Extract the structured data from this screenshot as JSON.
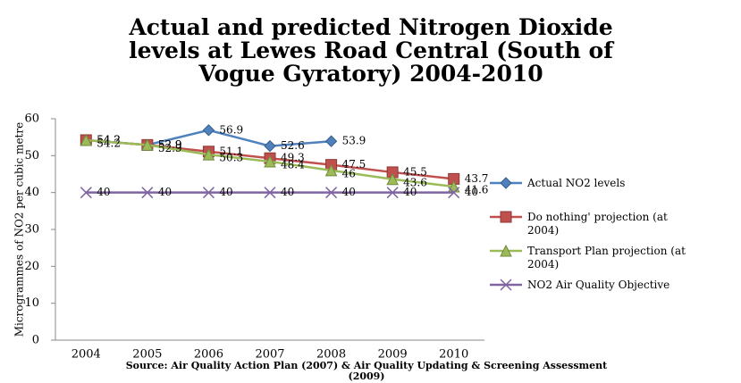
{
  "chart_data": {
    "type": "line",
    "title": "Actual and predicted Nitrogen Dioxide levels at Lewes Road Central (South of Vogue Gyratory) 2004-2010",
    "y_label": "Microgrammes of NO2 per cubic metre",
    "source": "Source: Air Quality Action Plan (2007) & Air Quality Updating & Screening Assessment (2009)",
    "categories": [
      "2004",
      "2005",
      "2006",
      "2007",
      "2008",
      "2009",
      "2010"
    ],
    "ylim": [
      0,
      60
    ],
    "yticks": [
      0,
      10,
      20,
      30,
      40,
      50,
      60
    ],
    "legend": "right",
    "series": [
      {
        "name": "Actual NO2 levels",
        "color": "#4f81bd",
        "marker": "diamond",
        "values": [
          54.2,
          52.9,
          56.9,
          52.6,
          53.9,
          null,
          null
        ]
      },
      {
        "name": "Do nothing' projection (at 2004)",
        "color": "#c0504d",
        "marker": "square",
        "values": [
          54.2,
          52.9,
          51.1,
          49.3,
          47.5,
          45.5,
          43.7
        ]
      },
      {
        "name": "Transport Plan projection (at 2004)",
        "color": "#9bbb59",
        "marker": "triangle",
        "values": [
          54.2,
          52.9,
          50.3,
          48.4,
          46,
          43.6,
          41.6
        ]
      },
      {
        "name": "NO2 Air Quality Objective",
        "color": "#8064a2",
        "marker": "cross",
        "values": [
          40,
          40,
          40,
          40,
          40,
          40,
          40
        ]
      }
    ]
  }
}
